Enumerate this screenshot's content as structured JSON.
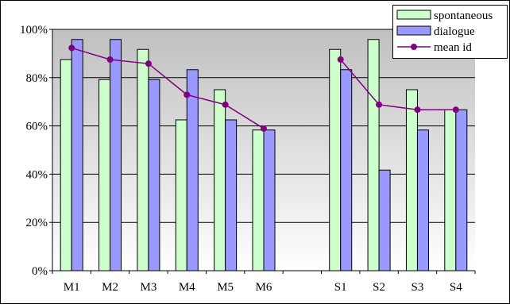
{
  "chart_data": {
    "type": "bar",
    "categories": [
      "M1",
      "M2",
      "M3",
      "M4",
      "M5",
      "M6",
      "",
      "S1",
      "S2",
      "S3",
      "S4"
    ],
    "series": [
      {
        "name": "spontaneous",
        "type": "bar",
        "color": "#ccffcc",
        "values": [
          87.5,
          79.2,
          91.7,
          62.5,
          75.0,
          58.3,
          null,
          91.7,
          95.8,
          75.0,
          66.7
        ]
      },
      {
        "name": "dialogue",
        "type": "bar",
        "color": "#9999ff",
        "values": [
          95.8,
          95.8,
          79.2,
          83.3,
          62.5,
          58.3,
          null,
          83.3,
          41.7,
          58.3,
          66.7
        ]
      },
      {
        "name": "mean id",
        "type": "line",
        "color": "#800080",
        "values": [
          92.3,
          87.5,
          85.8,
          72.9,
          68.8,
          58.9,
          null,
          87.5,
          68.8,
          66.7,
          66.7
        ]
      }
    ],
    "y_ticks": [
      "0%",
      "20%",
      "40%",
      "60%",
      "80%",
      "100%"
    ],
    "ylim": [
      0,
      100
    ],
    "grid": true,
    "legend_position": "top-right",
    "plot_background": "gradient gray to white"
  }
}
